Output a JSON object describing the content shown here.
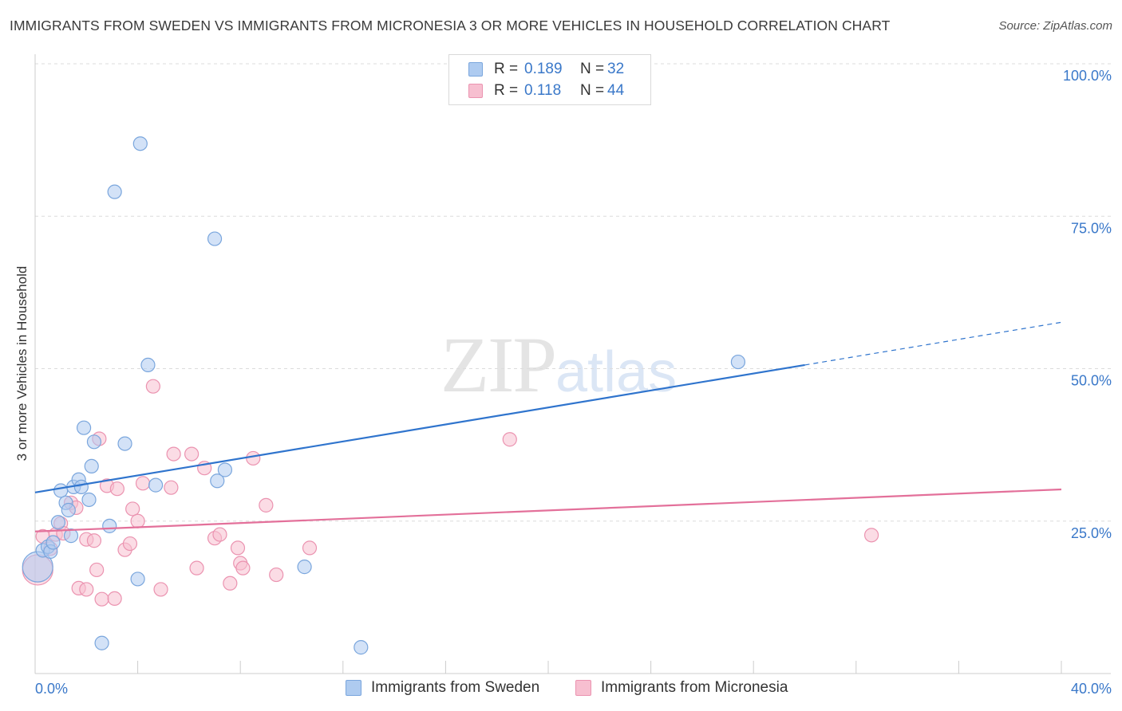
{
  "title": "IMMIGRANTS FROM SWEDEN VS IMMIGRANTS FROM MICRONESIA 3 OR MORE VEHICLES IN HOUSEHOLD CORRELATION CHART",
  "source": "Source: ZipAtlas.com",
  "watermark": {
    "zip": "ZIP",
    "atlas": "atlas"
  },
  "colors": {
    "sweden_fill": "#aecbf0",
    "sweden_stroke": "#7aa6dd",
    "sweden_line": "#2f74cd",
    "micronesia_fill": "#f7bfd0",
    "micronesia_stroke": "#eb93b0",
    "micronesia_line": "#e3709a",
    "tick_label": "#3a78c9"
  },
  "legend": {
    "rows": [
      {
        "r_label": "R =",
        "r_value": "0.189",
        "n_label": "N =",
        "n_value": "32"
      },
      {
        "r_label": "R =",
        "r_value": "0.118",
        "n_label": "N =",
        "n_value": "44"
      }
    ]
  },
  "bottom_legend": {
    "sweden": "Immigrants from Sweden",
    "micronesia": "Immigrants from Micronesia"
  },
  "chart_data": {
    "type": "scatter",
    "title": "IMMIGRANTS FROM SWEDEN VS IMMIGRANTS FROM MICRONESIA 3 OR MORE VEHICLES IN HOUSEHOLD CORRELATION CHART",
    "xlabel": "",
    "ylabel": "3 or more Vehicles in Household",
    "xlim": [
      0,
      40
    ],
    "ylim": [
      0,
      100
    ],
    "x_tick_labels": [
      {
        "value": 0,
        "label": "0.0%"
      },
      {
        "value": 40,
        "label": "40.0%"
      }
    ],
    "y_tick_labels": [
      {
        "value": 25,
        "label": "25.0%"
      },
      {
        "value": 50,
        "label": "50.0%"
      },
      {
        "value": 75,
        "label": "75.0%"
      },
      {
        "value": 100,
        "label": "100.0%"
      }
    ],
    "series": [
      {
        "name": "Immigrants from Sweden",
        "r": 0.189,
        "n": 32,
        "trend": {
          "x0": 0,
          "y0": 29.7,
          "x1": 30,
          "y1": 50.6,
          "dashed_to_x": 40,
          "dashed_to_y": 57.6
        },
        "points": [
          {
            "x": 0.1,
            "y": 17.5,
            "big": true
          },
          {
            "x": 0.3,
            "y": 20.2
          },
          {
            "x": 0.5,
            "y": 20.8
          },
          {
            "x": 0.6,
            "y": 20.0
          },
          {
            "x": 0.7,
            "y": 21.5
          },
          {
            "x": 0.9,
            "y": 24.8
          },
          {
            "x": 1.0,
            "y": 30.0
          },
          {
            "x": 1.2,
            "y": 28.0
          },
          {
            "x": 1.3,
            "y": 26.8
          },
          {
            "x": 1.4,
            "y": 22.6
          },
          {
            "x": 1.5,
            "y": 30.6
          },
          {
            "x": 1.7,
            "y": 31.8
          },
          {
            "x": 1.8,
            "y": 30.6
          },
          {
            "x": 1.9,
            "y": 40.3
          },
          {
            "x": 2.1,
            "y": 28.5
          },
          {
            "x": 2.2,
            "y": 34.0
          },
          {
            "x": 2.3,
            "y": 38.0
          },
          {
            "x": 2.6,
            "y": 5.0
          },
          {
            "x": 2.9,
            "y": 24.2
          },
          {
            "x": 3.1,
            "y": 79.0
          },
          {
            "x": 3.5,
            "y": 37.7
          },
          {
            "x": 4.0,
            "y": 15.5
          },
          {
            "x": 4.1,
            "y": 86.9
          },
          {
            "x": 4.4,
            "y": 50.6
          },
          {
            "x": 4.7,
            "y": 30.9
          },
          {
            "x": 7.0,
            "y": 71.3
          },
          {
            "x": 7.1,
            "y": 31.6
          },
          {
            "x": 7.4,
            "y": 33.4
          },
          {
            "x": 10.5,
            "y": 17.5
          },
          {
            "x": 12.7,
            "y": 4.3
          },
          {
            "x": 27.4,
            "y": 51.1
          }
        ]
      },
      {
        "name": "Immigrants from Micronesia",
        "r": 0.118,
        "n": 44,
        "trend": {
          "x0": 0,
          "y0": 23.3,
          "x1": 40,
          "y1": 30.2
        },
        "points": [
          {
            "x": 0.1,
            "y": 17.0,
            "big": true
          },
          {
            "x": 0.3,
            "y": 22.5
          },
          {
            "x": 0.6,
            "y": 20.5
          },
          {
            "x": 0.8,
            "y": 22.8
          },
          {
            "x": 1.0,
            "y": 24.6
          },
          {
            "x": 1.1,
            "y": 23.0
          },
          {
            "x": 1.4,
            "y": 28.0
          },
          {
            "x": 1.6,
            "y": 27.2
          },
          {
            "x": 1.7,
            "y": 14.0
          },
          {
            "x": 2.0,
            "y": 22.0
          },
          {
            "x": 2.0,
            "y": 13.8
          },
          {
            "x": 2.3,
            "y": 21.8
          },
          {
            "x": 2.4,
            "y": 17.0
          },
          {
            "x": 2.5,
            "y": 38.5
          },
          {
            "x": 2.6,
            "y": 12.2
          },
          {
            "x": 2.8,
            "y": 30.8
          },
          {
            "x": 3.1,
            "y": 12.3
          },
          {
            "x": 3.2,
            "y": 30.3
          },
          {
            "x": 3.5,
            "y": 20.3
          },
          {
            "x": 3.7,
            "y": 21.3
          },
          {
            "x": 3.8,
            "y": 27.0
          },
          {
            "x": 4.0,
            "y": 25.0
          },
          {
            "x": 4.2,
            "y": 31.2
          },
          {
            "x": 4.6,
            "y": 47.1
          },
          {
            "x": 4.9,
            "y": 13.8
          },
          {
            "x": 5.3,
            "y": 30.5
          },
          {
            "x": 5.4,
            "y": 36.0
          },
          {
            "x": 6.1,
            "y": 36.0
          },
          {
            "x": 6.3,
            "y": 17.3
          },
          {
            "x": 6.6,
            "y": 33.7
          },
          {
            "x": 7.0,
            "y": 22.2
          },
          {
            "x": 7.2,
            "y": 22.8
          },
          {
            "x": 7.6,
            "y": 14.8
          },
          {
            "x": 7.9,
            "y": 20.6
          },
          {
            "x": 8.0,
            "y": 18.1
          },
          {
            "x": 8.1,
            "y": 17.3
          },
          {
            "x": 8.5,
            "y": 35.3
          },
          {
            "x": 9.0,
            "y": 27.6
          },
          {
            "x": 9.4,
            "y": 16.2
          },
          {
            "x": 10.7,
            "y": 20.6
          },
          {
            "x": 18.5,
            "y": 38.4
          },
          {
            "x": 32.6,
            "y": 22.7
          }
        ]
      }
    ],
    "grid": true,
    "legend_position": "top-center"
  }
}
